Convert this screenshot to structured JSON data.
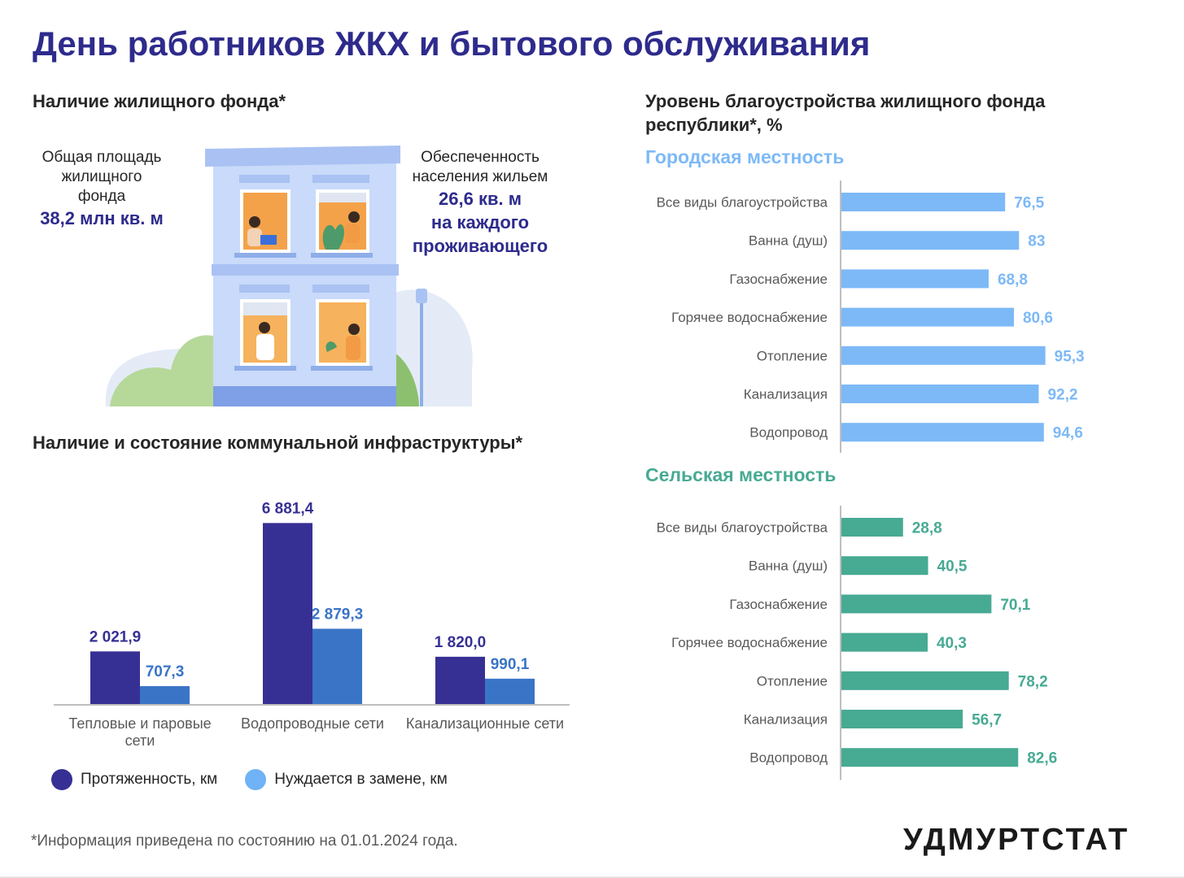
{
  "title": "День работников ЖКХ и бытового обслуживания",
  "housing": {
    "heading": "Наличие жилищного фонда*",
    "left_stat": {
      "label_lines": [
        "Общая площадь",
        "жилищного",
        "фонда"
      ],
      "value": "38,2 млн кв. м"
    },
    "right_stat": {
      "label_lines": [
        "Обеспеченность",
        "населения жильем"
      ],
      "value_lines": [
        "26,6 кв. м",
        "на каждого",
        "проживающего"
      ]
    }
  },
  "colors": {
    "length": "#373094",
    "replace": "#3a74c6",
    "legend_replace": "#6fb2f5",
    "urban": "#7db9f7",
    "rural": "#47aa93",
    "title": "#2e2b8c"
  },
  "infra": {
    "heading": "Наличие и состояние коммунальной инфраструктуры*",
    "legend": [
      {
        "label": "Протяженность, км",
        "color": "#373094"
      },
      {
        "label": "Нуждается в замене, км",
        "color": "#6fb2f5"
      }
    ]
  },
  "level": {
    "heading_lines": [
      "Уровень благоустройства жилищного фонда",
      "республики*, %"
    ],
    "urban_title": "Городская местность",
    "rural_title": "Сельская местность"
  },
  "chart_data": [
    {
      "type": "bar",
      "title": "Наличие и состояние коммунальной инфраструктуры*",
      "categories": [
        "Тепловые и паровые сети",
        "Водопроводные сети",
        "Канализационные сети"
      ],
      "category_labels": [
        [
          "Тепловые и паровые",
          "сети"
        ],
        [
          "Водопроводные сети"
        ],
        [
          "Канализационные сети"
        ]
      ],
      "series": [
        {
          "name": "Протяженность, км",
          "values": [
            2021.9,
            6881.4,
            1820.0
          ],
          "labels": [
            "2 021,9",
            "6 881,4",
            "1 820,0"
          ]
        },
        {
          "name": "Нуждается в замене, км",
          "values": [
            707.3,
            2879.3,
            990.1
          ],
          "labels": [
            "707,3",
            "2 879,3",
            "990,1"
          ]
        }
      ],
      "ylim": [
        0,
        8000
      ],
      "grid": false,
      "legend": "bottom"
    },
    {
      "type": "bar",
      "orientation": "horizontal",
      "title": "Городская местность",
      "categories": [
        "Все виды благоустройства",
        "Ванна (душ)",
        "Газоснабжение",
        "Горячее водоснабжение",
        "Отопление",
        "Канализация",
        "Водопровод"
      ],
      "values": [
        76.5,
        83,
        68.8,
        80.6,
        95.3,
        92.2,
        94.6
      ],
      "labels": [
        "76,5",
        "83",
        "68,8",
        "80,6",
        "95,3",
        "92,2",
        "94,6"
      ],
      "xlim": [
        0,
        100
      ],
      "grid": false
    },
    {
      "type": "bar",
      "orientation": "horizontal",
      "title": "Сельская местность",
      "categories": [
        "Все виды благоустройства",
        "Ванна (душ)",
        "Газоснабжение",
        "Горячее водоснабжение",
        "Отопление",
        "Канализация",
        "Водопровод"
      ],
      "values": [
        28.8,
        40.5,
        70.1,
        40.3,
        78.2,
        56.7,
        82.6
      ],
      "labels": [
        "28,8",
        "40,5",
        "70,1",
        "40,3",
        "78,2",
        "56,7",
        "82,6"
      ],
      "xlim": [
        0,
        100
      ],
      "grid": false
    }
  ],
  "footnote": "*Информация приведена по состоянию на 01.01.2024 года.",
  "logo": "УДМУРТСТАТ"
}
